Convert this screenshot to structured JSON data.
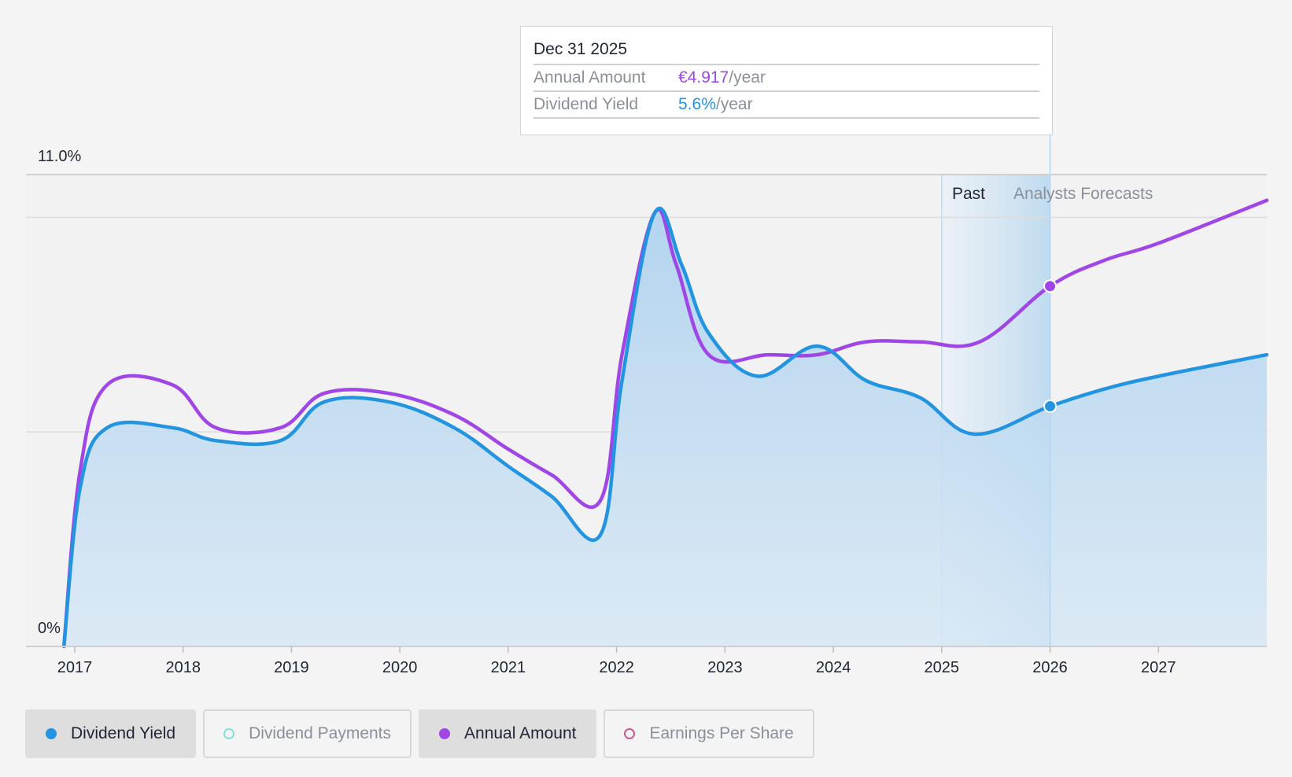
{
  "tooltip": {
    "date": "Dec 31 2025",
    "rows": [
      {
        "label": "Annual Amount",
        "value": "€4.917",
        "unit": "/year"
      },
      {
        "label": "Dividend Yield",
        "value": "5.6%",
        "unit": "/year"
      }
    ]
  },
  "regions": {
    "past": "Past",
    "forecast": "Analysts Forecasts"
  },
  "legend": [
    {
      "label": "Dividend Yield",
      "active": true,
      "color": "#2394e0",
      "icon": "filled-circle-icon"
    },
    {
      "label": "Dividend Payments",
      "active": false,
      "color": "#7ee0d6",
      "icon": "hollow-circle-icon"
    },
    {
      "label": "Annual Amount",
      "active": true,
      "color": "#a046e6",
      "icon": "filled-circle-icon"
    },
    {
      "label": "Earnings Per Share",
      "active": false,
      "color": "#d05a8e",
      "icon": "hollow-circle-icon"
    }
  ],
  "colors": {
    "yield": "#2394e0",
    "annual": "#a046e6",
    "fill": "#bcdaf1"
  },
  "chart_data": {
    "type": "line",
    "y_tick_labels": [
      "11.0%",
      "0%"
    ],
    "ylim": [
      0,
      11.0
    ],
    "x_ticks": [
      "2017",
      "2018",
      "2019",
      "2020",
      "2021",
      "2022",
      "2023",
      "2024",
      "2025",
      "2026",
      "2027"
    ],
    "xlim": [
      2016.55,
      2028.0
    ],
    "past_forecast_boundary": 2026.0,
    "grid": true,
    "series": [
      {
        "name": "Dividend Yield",
        "points": [
          [
            2016.9,
            0
          ],
          [
            2017.05,
            3.7
          ],
          [
            2017.3,
            5.1
          ],
          [
            2017.9,
            5.1
          ],
          [
            2018.3,
            4.8
          ],
          [
            2018.9,
            4.8
          ],
          [
            2019.3,
            5.7
          ],
          [
            2019.9,
            5.7
          ],
          [
            2020.5,
            5.1
          ],
          [
            2021.0,
            4.2
          ],
          [
            2021.4,
            3.5
          ],
          [
            2021.85,
            2.6
          ],
          [
            2022.05,
            6.2
          ],
          [
            2022.35,
            10.1
          ],
          [
            2022.6,
            8.9
          ],
          [
            2022.85,
            7.3
          ],
          [
            2023.3,
            6.3
          ],
          [
            2023.85,
            7.0
          ],
          [
            2024.3,
            6.2
          ],
          [
            2024.8,
            5.8
          ],
          [
            2025.3,
            4.95
          ],
          [
            2026.0,
            5.6
          ],
          [
            2026.5,
            6.0
          ],
          [
            2027.0,
            6.3
          ],
          [
            2028.0,
            6.8
          ]
        ]
      },
      {
        "name": "Annual Amount",
        "points": [
          [
            2016.9,
            0
          ],
          [
            2017.05,
            4.1
          ],
          [
            2017.3,
            6.1
          ],
          [
            2017.9,
            6.1
          ],
          [
            2018.3,
            5.1
          ],
          [
            2018.9,
            5.1
          ],
          [
            2019.3,
            5.9
          ],
          [
            2019.9,
            5.9
          ],
          [
            2020.5,
            5.4
          ],
          [
            2021.0,
            4.6
          ],
          [
            2021.4,
            4.0
          ],
          [
            2021.85,
            3.4
          ],
          [
            2022.05,
            6.8
          ],
          [
            2022.35,
            10.1
          ],
          [
            2022.55,
            8.9
          ],
          [
            2022.85,
            6.8
          ],
          [
            2023.4,
            6.8
          ],
          [
            2023.85,
            6.8
          ],
          [
            2024.3,
            7.1
          ],
          [
            2024.8,
            7.1
          ],
          [
            2025.35,
            7.1
          ],
          [
            2026.0,
            8.4
          ],
          [
            2026.5,
            9.0
          ],
          [
            2027.0,
            9.4
          ],
          [
            2028.0,
            10.4
          ]
        ]
      }
    ]
  }
}
